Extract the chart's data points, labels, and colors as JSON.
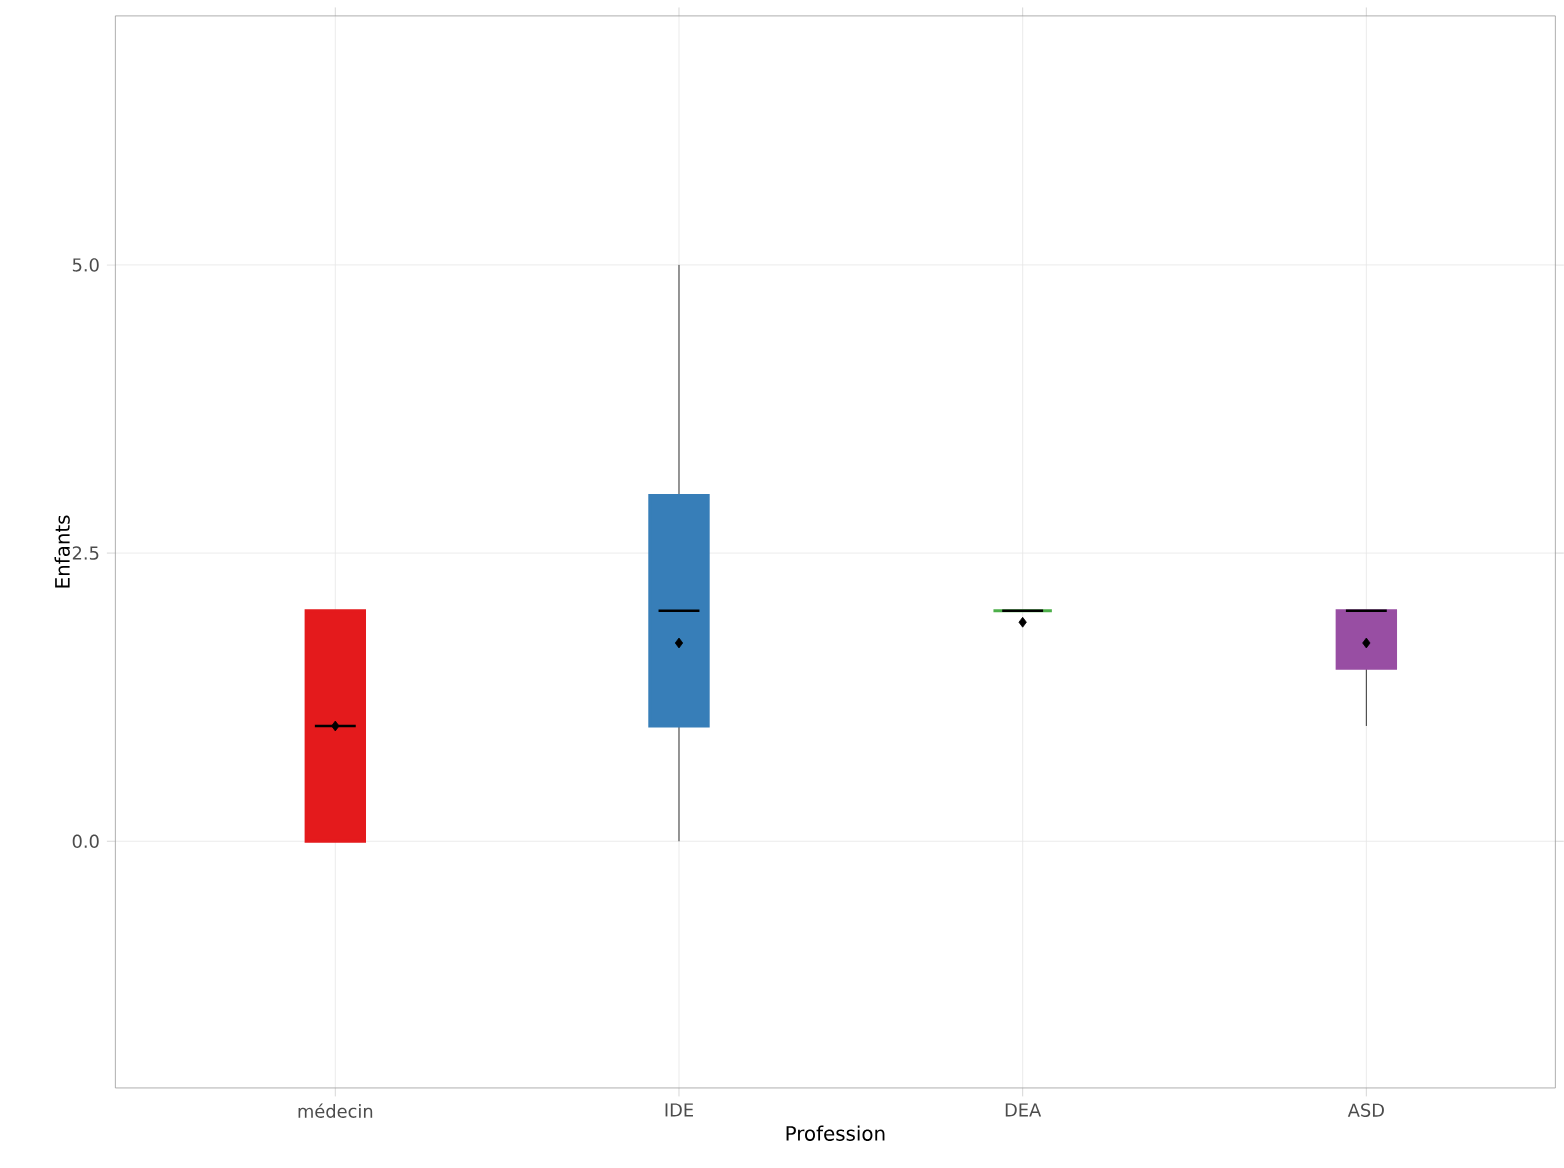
{
  "chart_data": {
    "type": "box",
    "xlabel": "Profession",
    "ylabel": "Enfants",
    "categories": [
      "médecin",
      "IDE",
      "DEA",
      "ASD"
    ],
    "colors": [
      "#e41a1c",
      "#377eb8",
      "#4daf4a",
      "#984ea3"
    ],
    "boxes": [
      {
        "low": 0,
        "q1": 0,
        "median": 1,
        "q3": 2,
        "high": 2,
        "mean": 1.0
      },
      {
        "low": 0,
        "q1": 1,
        "median": 2,
        "q3": 3,
        "high": 5,
        "mean": 1.72
      },
      {
        "low": 2,
        "q1": 2,
        "median": 2,
        "q3": 2,
        "high": 2,
        "mean": 1.9
      },
      {
        "low": 1,
        "q1": 1.5,
        "median": 2,
        "q3": 2,
        "high": 2,
        "mean": 1.72
      }
    ],
    "ylim": [
      -2.14,
      7.16
    ],
    "yticks": [
      {
        "value": 0,
        "label": "0.0"
      },
      {
        "value": 2.5,
        "label": "2.5"
      },
      {
        "value": 5,
        "label": "5.0"
      }
    ],
    "grid": true,
    "marker": "diamond"
  }
}
